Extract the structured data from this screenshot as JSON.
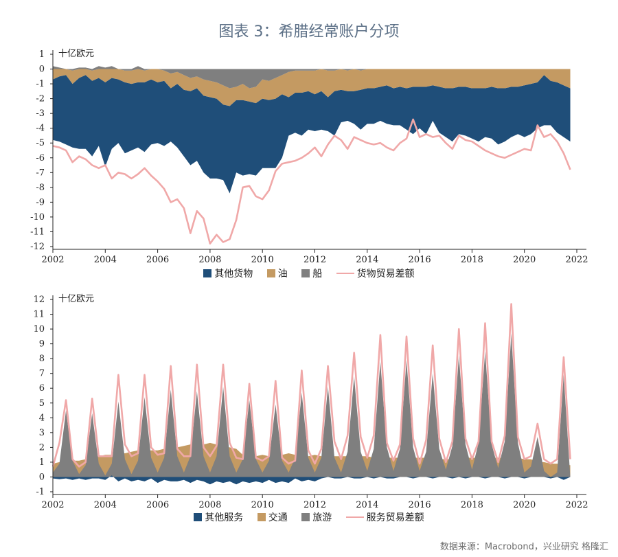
{
  "title": "图表 3：希腊经常账户分项",
  "source": "数据来源：Macrobond，兴业研究 格隆汇",
  "colors": {
    "dark_blue": "#1f4e79",
    "tan": "#c49a62",
    "gray": "#7f7f7f",
    "pink": "#f0a8a8"
  },
  "chart_data": [
    {
      "type": "area",
      "ylabel": "十亿欧元",
      "ylim": [
        -12,
        1
      ],
      "yticks": [
        "1",
        "0",
        "-1",
        "-2",
        "-3",
        "-4",
        "-5",
        "-6",
        "-7",
        "-8",
        "-9",
        "-10",
        "-11",
        "-12"
      ],
      "xticks": [
        "2002",
        "2004",
        "2006",
        "2008",
        "2010",
        "2012",
        "2014",
        "2016",
        "2018",
        "2020",
        "2022"
      ],
      "xlim": [
        2002,
        2022
      ],
      "x_start": 2002.0,
      "x_step": 0.25,
      "series": [
        {
          "name": "其他货物",
          "kind": "stacked-area",
          "color": "#1f4e79",
          "values": [
            -4.1,
            -4.4,
            -4.7,
            -4.3,
            -4.8,
            -5.0,
            -5.1,
            -4.6,
            -5.7,
            -4.8,
            -4.3,
            -4.8,
            -4.5,
            -4.4,
            -4.7,
            -4.4,
            -4.1,
            -4.4,
            -3.6,
            -4.3,
            -4.5,
            -5.0,
            -4.9,
            -5.2,
            -5.5,
            -5.4,
            -5.1,
            -5.9,
            -4.9,
            -5.1,
            -4.9,
            -4.9,
            -4.7,
            -4.6,
            -4.7,
            -4.3,
            -2.6,
            -2.7,
            -2.9,
            -2.6,
            -2.5,
            -2.6,
            -2.3,
            -3.0,
            -2.2,
            -2.0,
            -2.2,
            -2.7,
            -2.4,
            -2.4,
            -2.3,
            -2.6,
            -2.5,
            -2.6,
            -2.8,
            -3.2,
            -2.8,
            -3.2,
            -2.4,
            -3.1,
            -3.3,
            -3.6,
            -3.2,
            -3.3,
            -3.4,
            -3.6,
            -3.3,
            -3.5,
            -3.8,
            -3.6,
            -3.4,
            -3.2,
            -3.5,
            -3.4,
            -3.1,
            -3.4,
            -3.0,
            -3.4,
            -3.5,
            -3.6
          ]
        },
        {
          "name": "油",
          "kind": "stacked-area",
          "color": "#c49a62",
          "values": [
            -0.7,
            -0.5,
            -0.4,
            -0.9,
            -0.6,
            -0.4,
            -0.7,
            -0.6,
            -0.9,
            -0.6,
            -0.7,
            -0.8,
            -0.9,
            -0.9,
            -0.8,
            -0.7,
            -0.9,
            -0.7,
            -1.0,
            -0.8,
            -1.0,
            -0.9,
            -0.8,
            -1.1,
            -1.1,
            -1.1,
            -1.3,
            -1.2,
            -0.9,
            -1.1,
            -0.9,
            -1.1,
            -1.3,
            -1.3,
            -1.4,
            -1.3,
            -1.7,
            -1.5,
            -1.5,
            -1.4,
            -1.6,
            -1.5,
            -1.8,
            -1.4,
            -1.4,
            -1.4,
            -1.5,
            -1.3,
            -1.3,
            -1.3,
            -1.2,
            -1.1,
            -1.3,
            -1.2,
            -1.3,
            -1.2,
            -1.2,
            -1.2,
            -1.1,
            -1.2,
            -1.3,
            -1.3,
            -1.2,
            -1.2,
            -1.3,
            -1.3,
            -1.3,
            -1.2,
            -1.3,
            -1.3,
            -1.2,
            -1.2,
            -1.1,
            -1.0,
            -0.9,
            -0.4,
            -0.8,
            -0.9,
            -1.1,
            -1.3
          ]
        },
        {
          "name": "船",
          "kind": "stacked-area",
          "color": "#7f7f7f",
          "values": [
            0.2,
            0.1,
            0.0,
            -0.1,
            0.1,
            0.1,
            -0.1,
            0.2,
            0.1,
            0.2,
            0.0,
            -0.1,
            -0.1,
            0.2,
            -0.1,
            0.0,
            0.0,
            -0.1,
            -0.3,
            -0.2,
            -0.4,
            -0.6,
            -0.5,
            -0.7,
            -0.8,
            -0.9,
            -1.1,
            -1.3,
            -1.2,
            -1.0,
            -1.3,
            -1.2,
            -0.7,
            -0.8,
            -0.6,
            -0.4,
            -0.2,
            -0.1,
            -0.1,
            -0.1,
            -0.1,
            0.0,
            -0.1,
            -0.1,
            0.0,
            -0.1,
            0.0,
            -0.1,
            0.0,
            0.0,
            0.0,
            0.0,
            0.0,
            0.0,
            0.0,
            0.0,
            0.0,
            0.0,
            0.0,
            0.0,
            0.0,
            0.0,
            0.0,
            0.0,
            0.0,
            0.0,
            0.0,
            0.0,
            0.0,
            0.0,
            0.0,
            0.0,
            0.0,
            0.0,
            0.0,
            0.0,
            0.0,
            0.0,
            0.0,
            0.0
          ]
        },
        {
          "name": "货物贸易差额",
          "kind": "line",
          "color": "#f0a8a8",
          "values": [
            -5.2,
            -5.3,
            -5.5,
            -6.3,
            -5.9,
            -6.1,
            -6.5,
            -6.7,
            -6.5,
            -7.4,
            -7.0,
            -7.1,
            -7.4,
            -7.1,
            -6.7,
            -7.2,
            -7.6,
            -8.1,
            -9.0,
            -8.8,
            -9.4,
            -11.1,
            -9.6,
            -10.1,
            -11.8,
            -11.2,
            -11.7,
            -11.5,
            -10.2,
            -8.0,
            -7.9,
            -8.6,
            -8.8,
            -8.2,
            -6.9,
            -6.4,
            -6.3,
            -6.2,
            -6.0,
            -5.7,
            -5.3,
            -5.9,
            -5.1,
            -4.5,
            -4.8,
            -5.4,
            -4.6,
            -4.8,
            -5.0,
            -5.1,
            -5.0,
            -5.3,
            -5.5,
            -5.0,
            -4.7,
            -3.4,
            -4.6,
            -4.4,
            -4.6,
            -4.5,
            -5.0,
            -5.4,
            -4.5,
            -4.8,
            -4.9,
            -5.2,
            -5.5,
            -5.7,
            -5.9,
            -6.0,
            -5.8,
            -5.6,
            -5.4,
            -5.5,
            -3.8,
            -4.6,
            -4.4,
            -4.9,
            -5.7,
            -6.8
          ]
        }
      ]
    },
    {
      "type": "area",
      "ylabel": "十亿欧元",
      "ylim": [
        -1,
        12
      ],
      "yticks": [
        "12",
        "11",
        "10",
        "9",
        "8",
        "7",
        "6",
        "5",
        "4",
        "3",
        "2",
        "1",
        "0",
        "-1"
      ],
      "xticks": [
        "2002",
        "2004",
        "2006",
        "2008",
        "2010",
        "2012",
        "2014",
        "2016",
        "2018",
        "2020",
        "2022"
      ],
      "xlim": [
        2002,
        2022
      ],
      "x_start": 2002.0,
      "x_step": 0.25,
      "series": [
        {
          "name": "其他服务",
          "kind": "area",
          "color": "#1f4e79",
          "values": [
            -0.1,
            -0.15,
            -0.1,
            -0.2,
            -0.1,
            -0.2,
            -0.1,
            -0.1,
            -0.2,
            0.1,
            -0.3,
            -0.1,
            -0.3,
            -0.2,
            -0.3,
            -0.1,
            -0.4,
            -0.2,
            -0.3,
            -0.3,
            -0.2,
            -0.4,
            -0.2,
            -0.3,
            -0.5,
            -0.3,
            -0.4,
            -0.3,
            -0.5,
            -0.3,
            -0.4,
            -0.3,
            -0.4,
            -0.2,
            -0.4,
            -0.3,
            -0.4,
            -0.1,
            -0.3,
            -0.2,
            -0.3,
            -0.1,
            0.0,
            -0.1,
            -0.1,
            0.0,
            -0.1,
            -0.1,
            0.0,
            -0.1,
            0.0,
            -0.1,
            -0.1,
            0.0,
            0.0,
            -0.1,
            0.0,
            0.0,
            -0.1,
            0.0,
            0.0,
            -0.1,
            0.0,
            -0.1,
            0.0,
            0.0,
            -0.1,
            0.0,
            0.0,
            -0.1,
            0.0,
            0.0,
            -0.1,
            0.0,
            0.0,
            0.0,
            -0.1,
            0.0,
            -0.2,
            0.0
          ]
        },
        {
          "name": "交通",
          "kind": "area",
          "color": "#c49a62",
          "values": [
            0.9,
            1.0,
            1.1,
            1.1,
            1.1,
            1.2,
            1.3,
            1.4,
            1.5,
            1.5,
            1.6,
            1.6,
            1.7,
            1.8,
            1.8,
            1.8,
            1.8,
            1.9,
            2.0,
            2.0,
            2.1,
            2.2,
            2.2,
            2.2,
            2.3,
            2.2,
            2.1,
            2.0,
            1.9,
            1.5,
            1.3,
            1.4,
            1.5,
            1.4,
            1.4,
            1.5,
            1.6,
            1.5,
            1.5,
            1.4,
            1.5,
            1.4,
            1.4,
            1.4,
            1.4,
            1.4,
            1.4,
            1.4,
            1.4,
            1.3,
            1.3,
            1.3,
            1.3,
            1.3,
            1.3,
            1.3,
            1.3,
            1.3,
            1.3,
            1.2,
            1.2,
            1.2,
            1.3,
            1.3,
            1.3,
            1.3,
            1.3,
            1.3,
            1.3,
            1.3,
            1.3,
            1.3,
            1.2,
            1.2,
            1.0,
            1.0,
            0.9,
            0.9,
            0.8,
            0.8
          ]
        },
        {
          "name": "旅游",
          "kind": "area",
          "color": "#7f7f7f",
          "values": [
            0.3,
            0.9,
            4.5,
            1.1,
            0.2,
            0.8,
            4.3,
            0.9,
            0.1,
            0.9,
            5.1,
            1.2,
            0.2,
            1.1,
            5.4,
            1.3,
            0.3,
            1.3,
            5.9,
            1.4,
            0.3,
            1.4,
            5.8,
            1.4,
            0.3,
            1.4,
            6.1,
            1.4,
            0.3,
            1.2,
            5.2,
            1.2,
            0.3,
            1.1,
            4.9,
            1.1,
            0.3,
            1.3,
            5.7,
            1.3,
            0.3,
            1.3,
            6.1,
            1.3,
            0.3,
            1.7,
            6.8,
            1.7,
            0.4,
            1.9,
            7.8,
            2.0,
            0.4,
            1.9,
            7.9,
            2.0,
            0.4,
            1.7,
            7.0,
            1.9,
            0.5,
            2.1,
            8.2,
            2.2,
            0.5,
            2.3,
            8.5,
            2.2,
            0.6,
            2.4,
            9.7,
            2.3,
            0.3,
            0.7,
            2.7,
            0.4,
            0.0,
            0.3,
            6.9,
            0.0
          ]
        },
        {
          "name": "服务贸易差额",
          "kind": "line",
          "color": "#f0a8a8",
          "values": [
            0.7,
            2.3,
            5.2,
            1.2,
            0.7,
            1.0,
            5.3,
            1.4,
            1.4,
            1.4,
            6.9,
            2.2,
            1.4,
            1.6,
            6.9,
            2.0,
            1.5,
            1.6,
            7.5,
            1.9,
            1.4,
            1.4,
            7.6,
            2.0,
            1.4,
            2.1,
            7.6,
            2.3,
            1.3,
            1.2,
            6.3,
            1.3,
            1.1,
            1.4,
            6.5,
            1.3,
            0.9,
            1.1,
            7.2,
            1.8,
            0.9,
            1.9,
            7.5,
            2.4,
            1.2,
            2.8,
            8.4,
            2.7,
            1.3,
            2.8,
            9.6,
            2.3,
            1.1,
            2.2,
            9.5,
            2.6,
            0.9,
            2.5,
            8.9,
            2.6,
            1.0,
            2.4,
            10.0,
            2.6,
            1.2,
            2.4,
            10.4,
            2.4,
            1.0,
            2.8,
            11.7,
            2.7,
            1.2,
            1.4,
            3.6,
            1.2,
            0.9,
            1.2,
            8.1,
            1.2
          ]
        }
      ]
    }
  ]
}
